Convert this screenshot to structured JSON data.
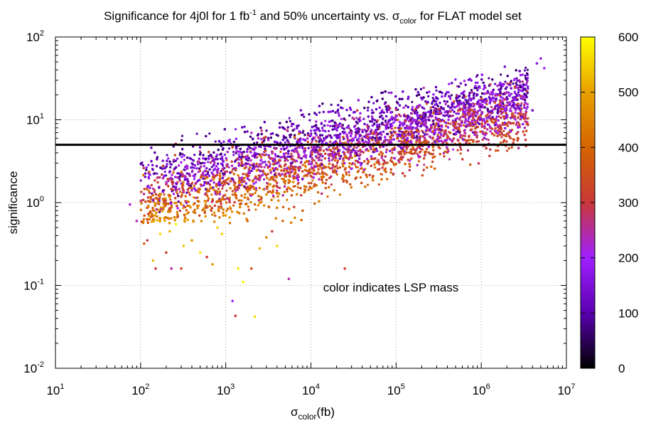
{
  "chart_data": {
    "type": "scatter",
    "title": {
      "main": "Significance for 4j0l for 1 fb",
      "sup": "-1",
      "mid": " and 50% uncertainty vs. σ",
      "sub": "color",
      "end": " for FLAT model set"
    },
    "xlabel": {
      "sym": "σ",
      "sub": "color",
      "unit": "(fb)"
    },
    "ylabel": "significance",
    "x_scale": "log",
    "y_scale": "log",
    "xlim": [
      10,
      10000000
    ],
    "ylim": [
      0.01,
      100
    ],
    "x_ticks": [
      {
        "value": 10,
        "base": "10",
        "exp": "1"
      },
      {
        "value": 100,
        "base": "10",
        "exp": "2"
      },
      {
        "value": 1000,
        "base": "10",
        "exp": "3"
      },
      {
        "value": 10000,
        "base": "10",
        "exp": "4"
      },
      {
        "value": 100000,
        "base": "10",
        "exp": "5"
      },
      {
        "value": 1000000,
        "base": "10",
        "exp": "6"
      },
      {
        "value": 10000000,
        "base": "10",
        "exp": "7"
      }
    ],
    "y_ticks": [
      {
        "value": 0.01,
        "base": "10",
        "exp": "-2"
      },
      {
        "value": 0.1,
        "base": "10",
        "exp": "-1"
      },
      {
        "value": 1,
        "base": "10",
        "exp": "0"
      },
      {
        "value": 10,
        "base": "10",
        "exp": "1"
      },
      {
        "value": 100,
        "base": "10",
        "exp": "2"
      }
    ],
    "grid": true,
    "threshold_line": {
      "y": 5
    },
    "annotation": "color indicates LSP mass",
    "colorbar": {
      "range": [
        0,
        600
      ],
      "ticks": [
        0,
        100,
        200,
        300,
        400,
        500,
        600
      ],
      "stops": [
        {
          "value": 0,
          "color": "#000000"
        },
        {
          "value": 100,
          "color": "#5a00b0"
        },
        {
          "value": 200,
          "color": "#a020ff"
        },
        {
          "value": 300,
          "color": "#c83838"
        },
        {
          "value": 400,
          "color": "#d46400"
        },
        {
          "value": 500,
          "color": "#e8a000"
        },
        {
          "value": 600,
          "color": "#ffff00"
        }
      ]
    },
    "points": [
      {
        "x": 75,
        "y": 0.95,
        "m": 220
      },
      {
        "x": 90,
        "y": 0.6,
        "m": 240
      },
      {
        "x": 110,
        "y": 0.32,
        "m": 380
      },
      {
        "x": 120,
        "y": 0.35,
        "m": 300
      },
      {
        "x": 140,
        "y": 0.2,
        "m": 520
      },
      {
        "x": 150,
        "y": 0.16,
        "m": 300
      },
      {
        "x": 170,
        "y": 0.42,
        "m": 560
      },
      {
        "x": 200,
        "y": 0.25,
        "m": 320
      },
      {
        "x": 220,
        "y": 0.45,
        "m": 520
      },
      {
        "x": 230,
        "y": 0.16,
        "m": 250
      },
      {
        "x": 260,
        "y": 0.55,
        "m": 590
      },
      {
        "x": 300,
        "y": 0.16,
        "m": 350
      },
      {
        "x": 320,
        "y": 0.3,
        "m": 540
      },
      {
        "x": 400,
        "y": 0.35,
        "m": 480
      },
      {
        "x": 500,
        "y": 0.25,
        "m": 570
      },
      {
        "x": 600,
        "y": 0.22,
        "m": 300
      },
      {
        "x": 700,
        "y": 0.18,
        "m": 480
      },
      {
        "x": 800,
        "y": 0.5,
        "m": 560
      },
      {
        "x": 900,
        "y": 0.42,
        "m": 540
      },
      {
        "x": 1000,
        "y": 0.7,
        "m": 500
      },
      {
        "x": 1200,
        "y": 0.065,
        "m": 200
      },
      {
        "x": 1300,
        "y": 0.043,
        "m": 300
      },
      {
        "x": 1400,
        "y": 0.16,
        "m": 580
      },
      {
        "x": 1600,
        "y": 0.11,
        "m": 590
      },
      {
        "x": 1800,
        "y": 0.6,
        "m": 400
      },
      {
        "x": 2000,
        "y": 0.16,
        "m": 350
      },
      {
        "x": 2200,
        "y": 0.042,
        "m": 560
      },
      {
        "x": 2500,
        "y": 0.28,
        "m": 520
      },
      {
        "x": 3000,
        "y": 0.38,
        "m": 450
      },
      {
        "x": 3500,
        "y": 0.45,
        "m": 300
      },
      {
        "x": 4000,
        "y": 0.3,
        "m": 560
      },
      {
        "x": 5500,
        "y": 0.12,
        "m": 240
      },
      {
        "x": 8000,
        "y": 0.8,
        "m": 380
      },
      {
        "x": 25000,
        "y": 0.16,
        "m": 330
      },
      {
        "x": 5000000,
        "y": 55,
        "m": 170
      },
      {
        "x": 4500000,
        "y": 48,
        "m": 160
      },
      {
        "x": 4000000,
        "y": 13,
        "m": 120
      },
      {
        "x": 3500000,
        "y": 32,
        "m": 180
      },
      {
        "x": 5500000,
        "y": 42,
        "m": 200
      }
    ]
  }
}
